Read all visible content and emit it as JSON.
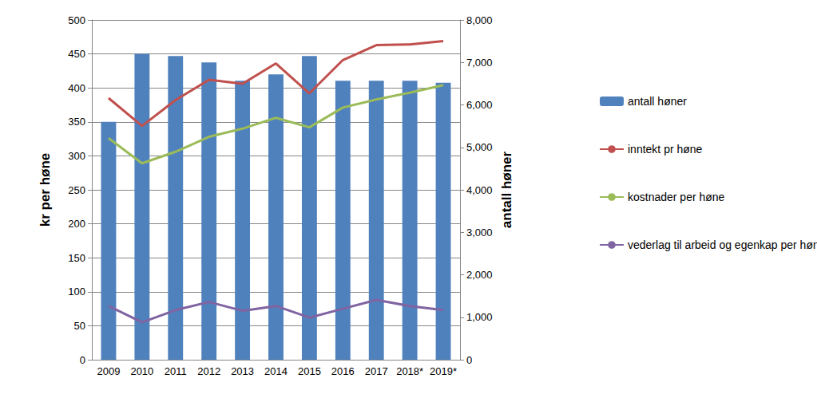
{
  "chart_data": {
    "type": "bar",
    "categories": [
      "2009",
      "2010",
      "2011",
      "2012",
      "2013",
      "2014",
      "2015",
      "2016",
      "2017",
      "2018*",
      "2019*"
    ],
    "y_label": "kr per høne",
    "y2_label": "antall høner",
    "ylim": [
      0,
      500
    ],
    "yticks": [
      0,
      50,
      100,
      150,
      200,
      250,
      300,
      350,
      400,
      450,
      500
    ],
    "y2lim": [
      0,
      8000
    ],
    "y2ticks": [
      0,
      1000,
      2000,
      3000,
      4000,
      5000,
      6000,
      7000,
      8000
    ],
    "grid": true,
    "legend": "right",
    "series": [
      {
        "name": "antall høner",
        "type": "bar",
        "axis": "y2",
        "color": "#4f81bd",
        "values": [
          5600,
          7200,
          7150,
          7000,
          6570,
          6720,
          7150,
          6570,
          6570,
          6570,
          6520
        ]
      },
      {
        "name": "inntekt pr høne",
        "type": "line",
        "color": "#c0504d",
        "values": [
          385,
          344,
          382,
          412,
          406,
          436,
          392,
          441,
          463,
          464,
          469
        ]
      },
      {
        "name": "kostnader per høne",
        "type": "line",
        "color": "#9bbb59",
        "values": [
          326,
          289,
          306,
          328,
          340,
          356,
          342,
          371,
          383,
          393,
          404
        ]
      },
      {
        "name": "vederlag til arbeid og egenkap per høne",
        "type": "line",
        "color": "#8064a2",
        "values": [
          79,
          55,
          73,
          85,
          72,
          79,
          62,
          75,
          88,
          79,
          73
        ]
      }
    ]
  }
}
